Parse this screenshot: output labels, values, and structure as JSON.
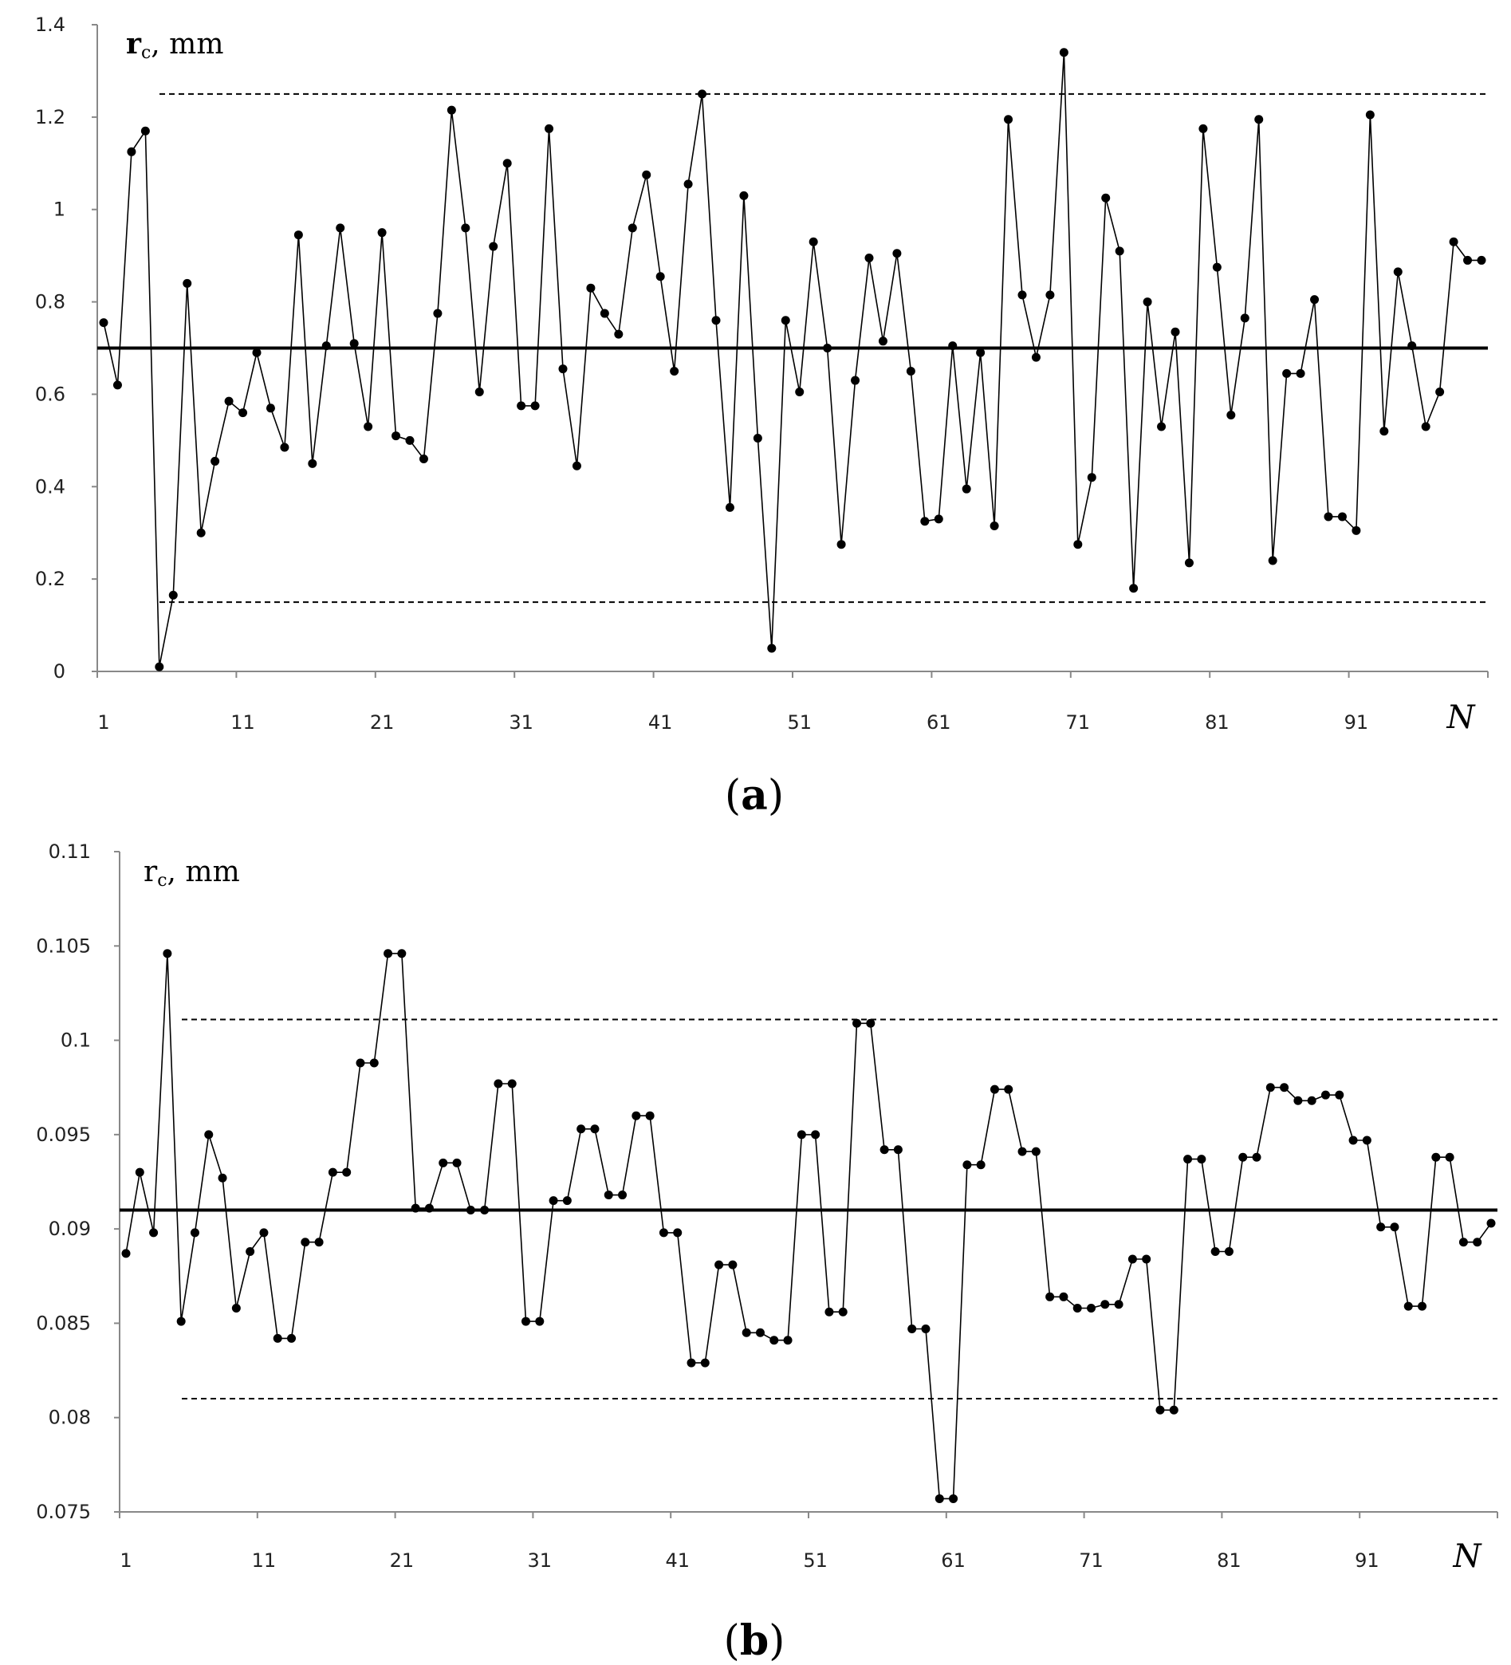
{
  "chart_data": [
    {
      "type": "line",
      "panel": "(a)",
      "panel_open": "(",
      "panel_letter": "a",
      "panel_close": ")",
      "ylabel_main": "r",
      "ylabel_sub": "c",
      "ylabel_unit": ", mm",
      "xlabel": "N",
      "ylim": [
        0,
        1.4
      ],
      "yticks": [
        0,
        0.2,
        0.4,
        0.6,
        0.8,
        1,
        1.2,
        1.4
      ],
      "ytick_labels": [
        "0",
        "0.2",
        "0.4",
        "0.6",
        "0.8",
        "1",
        "1.2",
        "1.4"
      ],
      "xlim": [
        1,
        100
      ],
      "xticks": [
        1,
        11,
        21,
        31,
        41,
        51,
        61,
        71,
        81,
        91
      ],
      "xtick_labels": [
        "1",
        "11",
        "21",
        "31",
        "41",
        "51",
        "61",
        "71",
        "81",
        "91"
      ],
      "center_line": 0.7,
      "upper_limit": 1.25,
      "lower_limit": 0.15,
      "series": [
        {
          "name": "rc",
          "values": [
            0.755,
            0.62,
            1.125,
            1.17,
            0.01,
            0.165,
            0.84,
            0.3,
            0.455,
            0.585,
            0.56,
            0.69,
            0.57,
            0.485,
            0.945,
            0.45,
            0.705,
            0.96,
            0.71,
            0.53,
            0.95,
            0.51,
            0.5,
            0.46,
            0.775,
            1.215,
            0.96,
            0.605,
            0.92,
            1.1,
            0.575,
            0.575,
            1.175,
            0.655,
            0.445,
            0.83,
            0.775,
            0.73,
            0.96,
            1.075,
            0.855,
            0.65,
            1.055,
            1.25,
            0.76,
            0.355,
            1.03,
            0.505,
            0.05,
            0.76,
            0.605,
            0.93,
            0.7,
            0.275,
            0.63,
            0.895,
            0.715,
            0.905,
            0.65,
            0.325,
            0.33,
            0.705,
            0.395,
            0.69,
            0.315,
            1.195,
            0.815,
            0.68,
            0.815,
            1.34,
            0.275,
            0.42,
            1.025,
            0.91,
            0.18,
            0.8,
            0.53,
            0.735,
            0.235,
            1.175,
            0.875,
            0.555,
            0.765,
            1.195,
            0.24,
            0.645,
            0.645,
            0.805,
            0.335,
            0.335,
            0.305,
            1.205,
            0.52,
            0.865,
            0.705,
            0.53,
            0.605,
            0.93,
            0.89,
            0.89
          ]
        }
      ]
    },
    {
      "type": "line",
      "panel": "(b)",
      "panel_open": "(",
      "panel_letter": "b",
      "panel_close": ")",
      "ylabel_main": "r",
      "ylabel_sub": "c",
      "ylabel_unit": ", mm",
      "xlabel": "N",
      "ylim": [
        0.075,
        0.11
      ],
      "yticks": [
        0.075,
        0.08,
        0.085,
        0.09,
        0.095,
        0.1,
        0.105,
        0.11
      ],
      "ytick_labels": [
        "0.075",
        "0.08",
        "0.085",
        "0.09",
        "0.095",
        "0.1",
        "0.105",
        "0.11"
      ],
      "xlim": [
        1,
        100
      ],
      "xticks": [
        1,
        11,
        21,
        31,
        41,
        51,
        61,
        71,
        81,
        91
      ],
      "xtick_labels": [
        "1",
        "11",
        "21",
        "31",
        "41",
        "51",
        "61",
        "71",
        "81",
        "91"
      ],
      "center_line": 0.091,
      "upper_limit": 0.1011,
      "lower_limit": 0.081,
      "series": [
        {
          "name": "rc",
          "values": [
            0.0887,
            0.093,
            0.0898,
            0.1046,
            0.0851,
            0.0898,
            0.095,
            0.0927,
            0.0858,
            0.0888,
            0.0898,
            0.0842,
            0.0842,
            0.0893,
            0.0893,
            0.093,
            0.093,
            0.0988,
            0.0988,
            0.1046,
            0.1046,
            0.0911,
            0.0911,
            0.0935,
            0.0935,
            0.091,
            0.091,
            0.0977,
            0.0977,
            0.0851,
            0.0851,
            0.0915,
            0.0915,
            0.0953,
            0.0953,
            0.0918,
            0.0918,
            0.096,
            0.096,
            0.0898,
            0.0898,
            0.0829,
            0.0829,
            0.0881,
            0.0881,
            0.0845,
            0.0845,
            0.0841,
            0.0841,
            0.095,
            0.095,
            0.0856,
            0.0856,
            0.1009,
            0.1009,
            0.0942,
            0.0942,
            0.0847,
            0.0847,
            0.0757,
            0.0757,
            0.0934,
            0.0934,
            0.0974,
            0.0974,
            0.0941,
            0.0941,
            0.0864,
            0.0864,
            0.0858,
            0.0858,
            0.086,
            0.086,
            0.0884,
            0.0884,
            0.0804,
            0.0804,
            0.0937,
            0.0937,
            0.0888,
            0.0888,
            0.0938,
            0.0938,
            0.0975,
            0.0975,
            0.0968,
            0.0968,
            0.0971,
            0.0971,
            0.0947,
            0.0947,
            0.0901,
            0.0901,
            0.0859,
            0.0859,
            0.0938,
            0.0938,
            0.0893,
            0.0893,
            0.0903
          ]
        }
      ]
    }
  ]
}
